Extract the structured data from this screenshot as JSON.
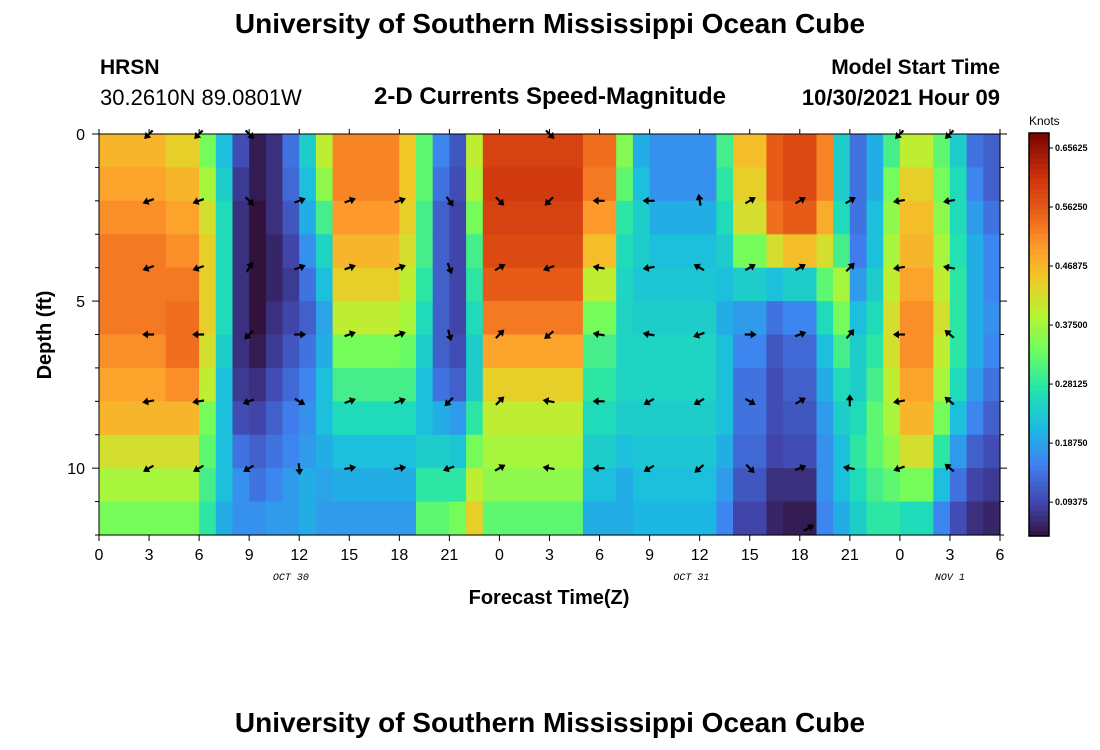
{
  "header": {
    "title": "University of Southern Mississippi Ocean Cube",
    "station": "HRSN",
    "coordinates": "30.2610N  89.0801W",
    "subtitle": "2-D Currents Speed-Magnitude",
    "model_start_label": "Model Start Time",
    "model_start_value": "10/30/2021 Hour 09"
  },
  "footer": {
    "title": "University of Southern Mississippi Ocean Cube"
  },
  "chart_data": {
    "type": "heatmap",
    "title": "2-D Currents Speed-Magnitude",
    "xlabel": "Forecast Time(Z)",
    "ylabel": "Depth (ft)",
    "xlim": [
      0,
      54
    ],
    "ylim": [
      0,
      12
    ],
    "x_ticks": [
      "0",
      "3",
      "6",
      "9",
      "12",
      "15",
      "18",
      "21",
      "0",
      "3",
      "6",
      "9",
      "12",
      "15",
      "18",
      "21",
      "0",
      "3",
      "6"
    ],
    "y_ticks": [
      "0",
      "5",
      "10"
    ],
    "date_labels": [
      {
        "text": "OCT 30",
        "hour": 11.5
      },
      {
        "text": "OCT 31",
        "hour": 35.5
      },
      {
        "text": "NOV 1",
        "hour": 51
      }
    ],
    "colorbar": {
      "label": "Knots",
      "min": 0.04,
      "max": 0.68,
      "ticks": [
        "0.65625",
        "0.56250",
        "0.46875",
        "0.37500",
        "0.28125",
        "0.18750",
        "0.09375"
      ],
      "tick_values": [
        0.65625,
        0.5625,
        0.46875,
        0.375,
        0.28125,
        0.1875,
        0.09375
      ]
    },
    "speed_profiles": [
      {
        "hours": [
          0,
          4
        ],
        "values": [
          0.47,
          0.49,
          0.51,
          0.53,
          0.53,
          0.53,
          0.51,
          0.49,
          0.47,
          0.42,
          0.38,
          0.34
        ]
      },
      {
        "hours": [
          4,
          6
        ],
        "values": [
          0.44,
          0.47,
          0.49,
          0.51,
          0.53,
          0.54,
          0.54,
          0.51,
          0.47,
          0.42,
          0.38,
          0.34
        ]
      },
      {
        "hours": [
          6,
          7
        ],
        "values": [
          0.34,
          0.38,
          0.42,
          0.44,
          0.44,
          0.44,
          0.42,
          0.4,
          0.34,
          0.32,
          0.3,
          0.28
        ]
      },
      {
        "hours": [
          7,
          8
        ],
        "values": [
          0.22,
          0.24,
          0.26,
          0.26,
          0.26,
          0.26,
          0.24,
          0.22,
          0.22,
          0.22,
          0.22,
          0.2
        ]
      },
      {
        "hours": [
          8,
          9
        ],
        "values": [
          0.1,
          0.08,
          0.07,
          0.07,
          0.07,
          0.07,
          0.07,
          0.08,
          0.1,
          0.14,
          0.17,
          0.17
        ]
      },
      {
        "hours": [
          9,
          10
        ],
        "values": [
          0.05,
          0.05,
          0.04,
          0.04,
          0.04,
          0.04,
          0.05,
          0.07,
          0.09,
          0.12,
          0.14,
          0.17
        ]
      },
      {
        "hours": [
          10,
          11
        ],
        "values": [
          0.07,
          0.07,
          0.07,
          0.06,
          0.06,
          0.07,
          0.08,
          0.1,
          0.12,
          0.14,
          0.16,
          0.18
        ]
      },
      {
        "hours": [
          11,
          12
        ],
        "values": [
          0.14,
          0.13,
          0.11,
          0.09,
          0.08,
          0.09,
          0.11,
          0.13,
          0.15,
          0.16,
          0.18,
          0.18
        ]
      },
      {
        "hours": [
          12,
          13
        ],
        "values": [
          0.24,
          0.22,
          0.2,
          0.17,
          0.14,
          0.12,
          0.14,
          0.16,
          0.17,
          0.18,
          0.2,
          0.2
        ]
      },
      {
        "hours": [
          13,
          14
        ],
        "values": [
          0.4,
          0.36,
          0.3,
          0.25,
          0.22,
          0.19,
          0.2,
          0.22,
          0.22,
          0.2,
          0.19,
          0.18
        ]
      },
      {
        "hours": [
          14,
          18
        ],
        "values": [
          0.52,
          0.52,
          0.5,
          0.47,
          0.44,
          0.4,
          0.34,
          0.3,
          0.26,
          0.22,
          0.2,
          0.18
        ]
      },
      {
        "hours": [
          18,
          19
        ],
        "values": [
          0.45,
          0.45,
          0.44,
          0.42,
          0.4,
          0.38,
          0.33,
          0.3,
          0.26,
          0.22,
          0.2,
          0.18
        ]
      },
      {
        "hours": [
          19,
          20
        ],
        "values": [
          0.32,
          0.32,
          0.3,
          0.3,
          0.28,
          0.26,
          0.24,
          0.22,
          0.22,
          0.24,
          0.28,
          0.32
        ]
      },
      {
        "hours": [
          20,
          21
        ],
        "values": [
          0.16,
          0.14,
          0.12,
          0.12,
          0.12,
          0.12,
          0.12,
          0.14,
          0.2,
          0.24,
          0.28,
          0.32
        ]
      },
      {
        "hours": [
          21,
          22
        ],
        "values": [
          0.11,
          0.1,
          0.09,
          0.09,
          0.09,
          0.09,
          0.1,
          0.12,
          0.18,
          0.23,
          0.28,
          0.34
        ]
      },
      {
        "hours": [
          22,
          23
        ],
        "values": [
          0.4,
          0.38,
          0.34,
          0.3,
          0.28,
          0.26,
          0.24,
          0.24,
          0.28,
          0.34,
          0.4,
          0.44
        ]
      },
      {
        "hours": [
          23,
          29
        ],
        "values": [
          0.59,
          0.6,
          0.59,
          0.58,
          0.56,
          0.53,
          0.49,
          0.44,
          0.4,
          0.38,
          0.36,
          0.32
        ]
      },
      {
        "hours": [
          29,
          31
        ],
        "values": [
          0.54,
          0.53,
          0.5,
          0.46,
          0.4,
          0.34,
          0.3,
          0.28,
          0.26,
          0.24,
          0.22,
          0.2
        ]
      },
      {
        "hours": [
          31,
          32
        ],
        "values": [
          0.35,
          0.32,
          0.28,
          0.26,
          0.25,
          0.25,
          0.25,
          0.25,
          0.24,
          0.22,
          0.2,
          0.2
        ]
      },
      {
        "hours": [
          32,
          33
        ],
        "values": [
          0.2,
          0.22,
          0.24,
          0.24,
          0.23,
          0.24,
          0.25,
          0.25,
          0.24,
          0.23,
          0.22,
          0.21
        ]
      },
      {
        "hours": [
          33,
          37
        ],
        "values": [
          0.17,
          0.17,
          0.2,
          0.22,
          0.23,
          0.24,
          0.25,
          0.25,
          0.24,
          0.23,
          0.22,
          0.21
        ]
      },
      {
        "hours": [
          37,
          38
        ],
        "values": [
          0.3,
          0.28,
          0.26,
          0.24,
          0.22,
          0.2,
          0.22,
          0.22,
          0.22,
          0.2,
          0.18,
          0.16
        ]
      },
      {
        "hours": [
          38,
          40
        ],
        "values": [
          0.46,
          0.44,
          0.42,
          0.34,
          0.24,
          0.18,
          0.16,
          0.14,
          0.14,
          0.13,
          0.11,
          0.09
        ]
      },
      {
        "hours": [
          40,
          41
        ],
        "values": [
          0.56,
          0.56,
          0.54,
          0.42,
          0.22,
          0.14,
          0.11,
          0.1,
          0.1,
          0.09,
          0.07,
          0.06
        ]
      },
      {
        "hours": [
          41,
          43
        ],
        "values": [
          0.58,
          0.58,
          0.56,
          0.46,
          0.24,
          0.16,
          0.13,
          0.12,
          0.11,
          0.1,
          0.07,
          0.05
        ]
      },
      {
        "hours": [
          43,
          44
        ],
        "values": [
          0.52,
          0.52,
          0.48,
          0.42,
          0.32,
          0.26,
          0.22,
          0.2,
          0.18,
          0.17,
          0.17,
          0.16
        ]
      },
      {
        "hours": [
          44,
          45
        ],
        "values": [
          0.24,
          0.24,
          0.26,
          0.3,
          0.38,
          0.34,
          0.3,
          0.26,
          0.24,
          0.22,
          0.22,
          0.2
        ]
      },
      {
        "hours": [
          45,
          46
        ],
        "values": [
          0.14,
          0.14,
          0.14,
          0.15,
          0.18,
          0.22,
          0.24,
          0.24,
          0.26,
          0.28,
          0.26,
          0.24
        ]
      },
      {
        "hours": [
          46,
          47
        ],
        "values": [
          0.2,
          0.2,
          0.22,
          0.22,
          0.24,
          0.26,
          0.28,
          0.3,
          0.32,
          0.32,
          0.3,
          0.28
        ]
      },
      {
        "hours": [
          47,
          48
        ],
        "values": [
          0.3,
          0.34,
          0.36,
          0.38,
          0.4,
          0.42,
          0.42,
          0.4,
          0.38,
          0.36,
          0.32,
          0.28
        ]
      },
      {
        "hours": [
          48,
          50
        ],
        "values": [
          0.4,
          0.44,
          0.46,
          0.47,
          0.49,
          0.51,
          0.51,
          0.49,
          0.47,
          0.42,
          0.34,
          0.26
        ]
      },
      {
        "hours": [
          50,
          51
        ],
        "values": [
          0.32,
          0.34,
          0.36,
          0.38,
          0.4,
          0.42,
          0.4,
          0.38,
          0.34,
          0.28,
          0.22,
          0.16
        ]
      },
      {
        "hours": [
          51,
          52
        ],
        "values": [
          0.24,
          0.26,
          0.26,
          0.27,
          0.28,
          0.28,
          0.28,
          0.26,
          0.22,
          0.18,
          0.14,
          0.1
        ]
      },
      {
        "hours": [
          52,
          53
        ],
        "values": [
          0.14,
          0.16,
          0.18,
          0.2,
          0.2,
          0.2,
          0.2,
          0.18,
          0.16,
          0.12,
          0.09,
          0.07
        ]
      },
      {
        "hours": [
          53,
          54
        ],
        "values": [
          0.12,
          0.12,
          0.14,
          0.16,
          0.16,
          0.17,
          0.16,
          0.14,
          0.12,
          0.1,
          0.08,
          0.06
        ]
      }
    ],
    "vectors": [
      {
        "hours": [
          3,
          6
        ],
        "depth": 0,
        "dir": 225
      },
      {
        "hours": [
          9
        ],
        "depth": 0,
        "dir": 135
      },
      {
        "hours": [
          27
        ],
        "depth": 0,
        "dir": 135
      },
      {
        "hours": [
          48
        ],
        "depth": 0,
        "dir": 225
      },
      {
        "hours": [
          51
        ],
        "depth": 0,
        "dir": 225
      },
      {
        "hours": [
          3,
          6
        ],
        "depth": 2,
        "dir": 250
      },
      {
        "hours": [
          9
        ],
        "depth": 2,
        "dir": 135
      },
      {
        "hours": [
          12,
          15,
          18
        ],
        "depth": 2,
        "dir": 70
      },
      {
        "hours": [
          21
        ],
        "depth": 2,
        "dir": 145
      },
      {
        "hours": [
          24
        ],
        "depth": 2,
        "dir": 135
      },
      {
        "hours": [
          27
        ],
        "depth": 2,
        "dir": 225
      },
      {
        "hours": [
          30,
          33
        ],
        "depth": 2,
        "dir": 270
      },
      {
        "hours": [
          36
        ],
        "depth": 2,
        "dir": 350
      },
      {
        "hours": [
          39,
          42,
          45
        ],
        "depth": 2,
        "dir": 60
      },
      {
        "hours": [
          48,
          51
        ],
        "depth": 2,
        "dir": 260
      },
      {
        "hours": [
          3,
          6
        ],
        "depth": 4,
        "dir": 250
      },
      {
        "hours": [
          9
        ],
        "depth": 4,
        "dir": 30
      },
      {
        "hours": [
          12,
          15,
          18
        ],
        "depth": 4,
        "dir": 70
      },
      {
        "hours": [
          21
        ],
        "depth": 4,
        "dir": 160
      },
      {
        "hours": [
          24
        ],
        "depth": 4,
        "dir": 60
      },
      {
        "hours": [
          27
        ],
        "depth": 4,
        "dir": 250
      },
      {
        "hours": [
          30
        ],
        "depth": 4,
        "dir": 280
      },
      {
        "hours": [
          33
        ],
        "depth": 4,
        "dir": 260
      },
      {
        "hours": [
          36
        ],
        "depth": 4,
        "dir": 300
      },
      {
        "hours": [
          39,
          42
        ],
        "depth": 4,
        "dir": 60
      },
      {
        "hours": [
          45
        ],
        "depth": 4,
        "dir": 45
      },
      {
        "hours": [
          48
        ],
        "depth": 4,
        "dir": 260
      },
      {
        "hours": [
          51
        ],
        "depth": 4,
        "dir": 280
      },
      {
        "hours": [
          3,
          6
        ],
        "depth": 6,
        "dir": 270
      },
      {
        "hours": [
          9
        ],
        "depth": 6,
        "dir": 225
      },
      {
        "hours": [
          12
        ],
        "depth": 6,
        "dir": 90
      },
      {
        "hours": [
          15,
          18
        ],
        "depth": 6,
        "dir": 70
      },
      {
        "hours": [
          21
        ],
        "depth": 6,
        "dir": 165
      },
      {
        "hours": [
          24
        ],
        "depth": 6,
        "dir": 45
      },
      {
        "hours": [
          27
        ],
        "depth": 6,
        "dir": 230
      },
      {
        "hours": [
          30,
          33
        ],
        "depth": 6,
        "dir": 280
      },
      {
        "hours": [
          36
        ],
        "depth": 6,
        "dir": 250
      },
      {
        "hours": [
          39
        ],
        "depth": 6,
        "dir": 90
      },
      {
        "hours": [
          42
        ],
        "depth": 6,
        "dir": 70
      },
      {
        "hours": [
          45
        ],
        "depth": 6,
        "dir": 40
      },
      {
        "hours": [
          48
        ],
        "depth": 6,
        "dir": 270
      },
      {
        "hours": [
          51
        ],
        "depth": 6,
        "dir": 310
      },
      {
        "hours": [
          3,
          6
        ],
        "depth": 8,
        "dir": 260
      },
      {
        "hours": [
          9
        ],
        "depth": 8,
        "dir": 250
      },
      {
        "hours": [
          12
        ],
        "depth": 8,
        "dir": 120
      },
      {
        "hours": [
          15,
          18
        ],
        "depth": 8,
        "dir": 70
      },
      {
        "hours": [
          21
        ],
        "depth": 8,
        "dir": 225
      },
      {
        "hours": [
          24
        ],
        "depth": 8,
        "dir": 45
      },
      {
        "hours": [
          27
        ],
        "depth": 8,
        "dir": 280
      },
      {
        "hours": [
          30
        ],
        "depth": 8,
        "dir": 270
      },
      {
        "hours": [
          33,
          36
        ],
        "depth": 8,
        "dir": 240
      },
      {
        "hours": [
          39
        ],
        "depth": 8,
        "dir": 120
      },
      {
        "hours": [
          42
        ],
        "depth": 8,
        "dir": 60
      },
      {
        "hours": [
          45
        ],
        "depth": 8,
        "dir": 0
      },
      {
        "hours": [
          48
        ],
        "depth": 8,
        "dir": 260
      },
      {
        "hours": [
          51
        ],
        "depth": 8,
        "dir": 310
      },
      {
        "hours": [
          3,
          6
        ],
        "depth": 10,
        "dir": 240
      },
      {
        "hours": [
          9
        ],
        "depth": 10,
        "dir": 240
      },
      {
        "hours": [
          12
        ],
        "depth": 10,
        "dir": 175
      },
      {
        "hours": [
          15,
          18
        ],
        "depth": 10,
        "dir": 80
      },
      {
        "hours": [
          21
        ],
        "depth": 10,
        "dir": 250
      },
      {
        "hours": [
          24
        ],
        "depth": 10,
        "dir": 60
      },
      {
        "hours": [
          27
        ],
        "depth": 10,
        "dir": 280
      },
      {
        "hours": [
          30
        ],
        "depth": 10,
        "dir": 270
      },
      {
        "hours": [
          33
        ],
        "depth": 10,
        "dir": 240
      },
      {
        "hours": [
          36
        ],
        "depth": 10,
        "dir": 230
      },
      {
        "hours": [
          39
        ],
        "depth": 10,
        "dir": 135
      },
      {
        "hours": [
          42
        ],
        "depth": 10,
        "dir": 70
      },
      {
        "hours": [
          45
        ],
        "depth": 10,
        "dir": 280
      },
      {
        "hours": [
          48
        ],
        "depth": 10,
        "dir": 250
      },
      {
        "hours": [
          51
        ],
        "depth": 10,
        "dir": 310
      },
      {
        "hours": [
          42.5
        ],
        "depth": 11.8,
        "dir": 60
      }
    ]
  }
}
